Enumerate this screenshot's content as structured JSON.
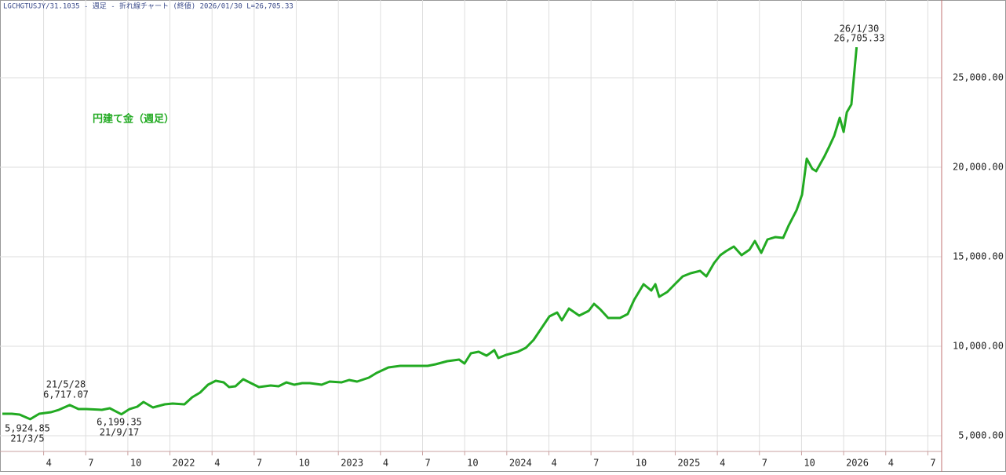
{
  "header": "LGCHGTUSJY/31.1035 - 週足 - 折れ線チャート (終値)  2026/01/30 L=26,705.33",
  "chart_data": {
    "type": "line",
    "label": "円建て金（週足）",
    "color": "#22aa22",
    "grid": true,
    "xlim": [
      2020.991,
      2026.582
    ],
    "ylim": [
      4123,
      29342
    ],
    "xticks": [
      {
        "value": 2021.25,
        "label": "4"
      },
      {
        "value": 2021.5,
        "label": "7"
      },
      {
        "value": 2021.75,
        "label": "10"
      },
      2022,
      {
        "value": 2022.25,
        "label": "4"
      },
      {
        "value": 2022.5,
        "label": "7"
      },
      {
        "value": 2022.75,
        "label": "10"
      },
      2023,
      {
        "value": 2023.25,
        "label": "4"
      },
      {
        "value": 2023.5,
        "label": "7"
      },
      {
        "value": 2023.75,
        "label": "10"
      },
      2024,
      {
        "value": 2024.25,
        "label": "4"
      },
      {
        "value": 2024.5,
        "label": "7"
      },
      {
        "value": 2024.75,
        "label": "10"
      },
      2025,
      {
        "value": 2025.25,
        "label": "4"
      },
      {
        "value": 2025.5,
        "label": "7"
      },
      {
        "value": 2025.75,
        "label": "10"
      },
      2026,
      {
        "value": 2026.25,
        "label": "4"
      },
      {
        "value": 2026.5,
        "label": "7"
      }
    ],
    "yticks": [
      {
        "value": 5000,
        "label": "5,000.00"
      },
      {
        "value": 10000,
        "label": "10,000.00"
      },
      {
        "value": 15000,
        "label": "15,000.00"
      },
      {
        "value": 20000,
        "label": "20,000.00"
      },
      {
        "value": 25000,
        "label": "25,000.00"
      }
    ],
    "x": [
      2021.005,
      2021.061,
      2021.107,
      2021.17,
      2021.224,
      2021.294,
      2021.34,
      2021.405,
      2021.457,
      2021.503,
      2021.596,
      2021.643,
      2021.712,
      2021.76,
      2021.806,
      2021.843,
      2021.899,
      2021.969,
      2022.016,
      2022.086,
      2022.132,
      2022.179,
      2022.226,
      2022.272,
      2022.319,
      2022.351,
      2022.389,
      2022.435,
      2022.472,
      2022.528,
      2022.598,
      2022.645,
      2022.692,
      2022.738,
      2022.785,
      2022.831,
      2022.901,
      2022.948,
      2023.018,
      2023.064,
      2023.111,
      2023.181,
      2023.227,
      2023.297,
      2023.367,
      2023.437,
      2023.53,
      2023.577,
      2023.647,
      2023.717,
      2023.749,
      2023.787,
      2023.833,
      2023.88,
      2023.926,
      2023.95,
      2023.996,
      2024.066,
      2024.113,
      2024.159,
      2024.206,
      2024.253,
      2024.299,
      2024.327,
      2024.369,
      2024.43,
      2024.486,
      2024.518,
      2024.555,
      2024.602,
      2024.672,
      2024.718,
      2024.756,
      2024.812,
      2024.858,
      2024.882,
      2024.905,
      2024.952,
      2024.998,
      2025.045,
      2025.092,
      2025.148,
      2025.185,
      2025.231,
      2025.268,
      2025.301,
      2025.348,
      2025.394,
      2025.441,
      2025.473,
      2025.511,
      2025.548,
      2025.595,
      2025.641,
      2025.674,
      2025.72,
      2025.753,
      2025.781,
      2025.814,
      2025.837,
      2025.884,
      2025.916,
      2025.944,
      2025.977,
      2026.0,
      2026.019,
      2026.046,
      2026.077
    ],
    "values": [
      6228,
      6228,
      6184,
      5924.85,
      6228,
      6316,
      6447,
      6717.07,
      6491,
      6491,
      6447,
      6535,
      6199.35,
      6491,
      6623,
      6886,
      6579,
      6754,
      6798,
      6754,
      7149,
      7412,
      7851,
      8070,
      7982,
      7719,
      7763,
      8158,
      7982,
      7719,
      7807,
      7763,
      7982,
      7851,
      7939,
      7939,
      7851,
      8026,
      7982,
      8114,
      8026,
      8246,
      8509,
      8816,
      8904,
      8904,
      8904,
      8991,
      9167,
      9254,
      9035,
      9605,
      9693,
      9474,
      9781,
      9342,
      9518,
      9693,
      9912,
      10351,
      11009,
      11667,
      11886,
      11447,
      12105,
      11711,
      11974,
      12368,
      12061,
      11579,
      11579,
      11798,
      12588,
      13465,
      13114,
      13465,
      12763,
      13026,
      13465,
      13904,
      14079,
      14211,
      13904,
      14649,
      15088,
      15307,
      15570,
      15088,
      15395,
      15877,
      15219,
      15965,
      16097,
      16053,
      16754,
      17588,
      18465,
      20481,
      19911,
      19781,
      20569,
      21183,
      21754,
      22763,
      21973,
      23070,
      23509,
      26705.33
    ],
    "annotations": [
      {
        "date": "21/3/5",
        "label": "5,924.85"
      },
      {
        "date": "21/5/28",
        "label": "6,717.07"
      },
      {
        "date": "21/9/17",
        "label": "6,199.35"
      },
      {
        "date": "26/1/30",
        "label": "26,705.33"
      }
    ]
  }
}
